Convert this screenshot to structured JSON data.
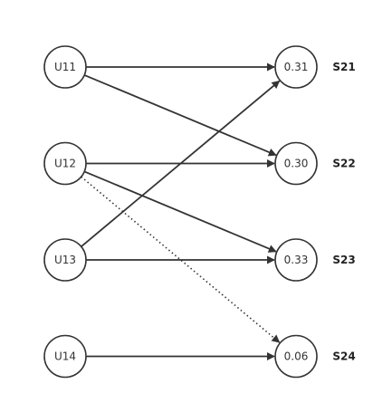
{
  "diagram": {
    "left_nodes": [
      {
        "id": "U11",
        "label": "U11"
      },
      {
        "id": "U12",
        "label": "U12"
      },
      {
        "id": "U13",
        "label": "U13"
      },
      {
        "id": "U14",
        "label": "U14"
      }
    ],
    "right_nodes": [
      {
        "id": "S21",
        "value": "0.31",
        "side_label": "S21"
      },
      {
        "id": "S22",
        "value": "0.30",
        "side_label": "S22"
      },
      {
        "id": "S23",
        "value": "0.33",
        "side_label": "S23"
      },
      {
        "id": "S24",
        "value": "0.06",
        "side_label": "S24"
      }
    ],
    "edges": [
      {
        "from": "U11",
        "to": "S21",
        "style": "solid"
      },
      {
        "from": "U11",
        "to": "S22",
        "style": "solid"
      },
      {
        "from": "U12",
        "to": "S22",
        "style": "solid"
      },
      {
        "from": "U12",
        "to": "S23",
        "style": "solid"
      },
      {
        "from": "U12",
        "to": "S24",
        "style": "dotted"
      },
      {
        "from": "U13",
        "to": "S21",
        "style": "solid"
      },
      {
        "from": "U13",
        "to": "S23",
        "style": "solid"
      },
      {
        "from": "U14",
        "to": "S24",
        "style": "solid"
      }
    ],
    "colors": {
      "stroke": "#333333",
      "background": "#ffffff"
    }
  }
}
